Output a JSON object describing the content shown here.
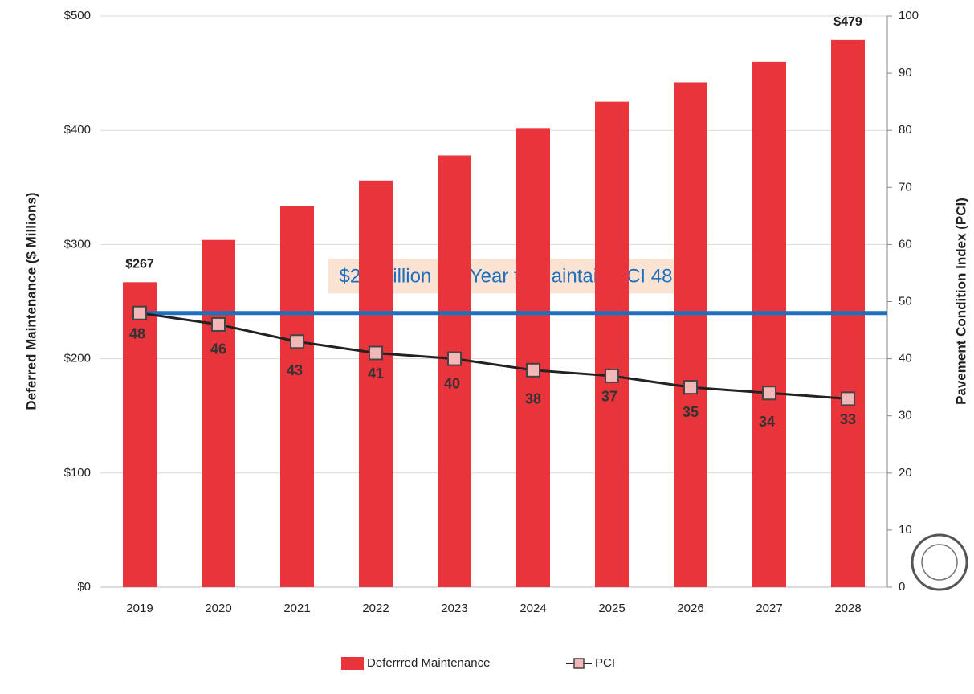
{
  "chart_data": {
    "type": "bar",
    "categories": [
      "2019",
      "2020",
      "2021",
      "2022",
      "2023",
      "2024",
      "2025",
      "2026",
      "2027",
      "2028"
    ],
    "series": [
      {
        "name": "Deferrred Maintenance",
        "type": "bar",
        "color": "#e8343a",
        "values": [
          267,
          304,
          334,
          356,
          378,
          402,
          425,
          442,
          460,
          479
        ],
        "value_labels": [
          "$267",
          null,
          null,
          null,
          null,
          null,
          null,
          null,
          null,
          "$479"
        ]
      },
      {
        "name": "PCI",
        "type": "line",
        "axis": "y2",
        "color": "#f2b8b8",
        "line_color": "#222222",
        "values": [
          48,
          46,
          43,
          41,
          40,
          38,
          37,
          35,
          34,
          33
        ]
      }
    ],
    "ylabel": "Deferred Maintenance ($ Millions)",
    "y2label": "Pavement Condition Index (PCI)",
    "ylim": [
      0,
      500
    ],
    "yticks": [
      {
        "value": 0,
        "label": "$0"
      },
      {
        "value": 100,
        "label": "$100"
      },
      {
        "value": 200,
        "label": "$200"
      },
      {
        "value": 300,
        "label": "$300"
      },
      {
        "value": 400,
        "label": "$400"
      },
      {
        "value": 500,
        "label": "$500"
      }
    ],
    "y2lim": [
      0,
      100
    ],
    "y2ticks": [
      0,
      10,
      20,
      30,
      40,
      50,
      60,
      70,
      80,
      90,
      100
    ],
    "reference_line": {
      "value": 48,
      "axis": "y2",
      "color": "#1f6fbf"
    },
    "annotation": "$24 Million per Year to Maintain PCI 48",
    "grid": true,
    "legend": "bottom"
  }
}
